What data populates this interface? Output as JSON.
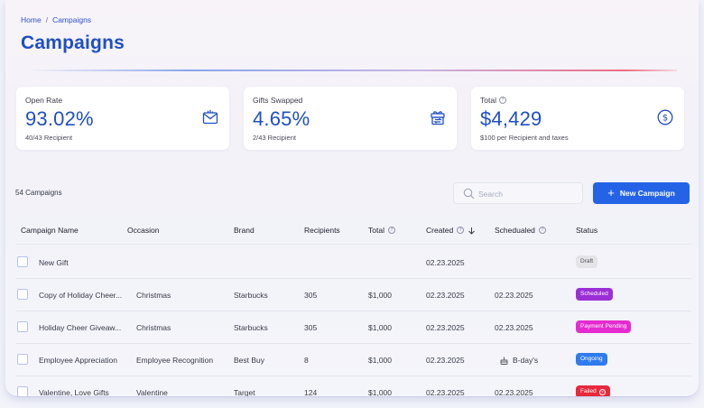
{
  "breadcrumb": {
    "home": "Home",
    "separator": "/",
    "current": "Campaigns"
  },
  "page_title": "Campaigns",
  "stats": [
    {
      "label": "Open Rate",
      "value": "93.02%",
      "sub": "40/43 Recipient",
      "icon": "envelope-chart-icon",
      "has_info": false
    },
    {
      "label": "Gifts Swapped",
      "value": "4.65%",
      "sub": "2/43 Recipient",
      "icon": "gift-swap-icon",
      "has_info": false
    },
    {
      "label": "Total",
      "value": "$4,429",
      "sub": "$100 per Recipient and taxes",
      "icon": "dollar-circle-icon",
      "has_info": true
    }
  ],
  "toolbar": {
    "count_label": "54 Campaigns",
    "search_placeholder": "Search",
    "new_campaign_label": "New Campaign"
  },
  "table": {
    "headers": {
      "name": "Campaign Name",
      "occasion": "Occasion",
      "brand": "Brand",
      "recipients": "Recipients",
      "total": "Total",
      "created": "Created",
      "scheduled": "Schedualed",
      "status": "Status"
    },
    "rows": [
      {
        "name": "New Gift",
        "occasion": "",
        "brand": "",
        "recipients": "",
        "total": "",
        "created": "02.23.2025",
        "scheduled": "",
        "status": "Draft",
        "status_color": "#e4e4e8",
        "status_text_color": "#555555",
        "status_info": false,
        "scheduled_icon": false
      },
      {
        "name": "Copy of Holiday Cheer...",
        "occasion": "Christmas",
        "brand": "Starbucks",
        "recipients": "305",
        "total": "$1,000",
        "created": "02.23.2025",
        "scheduled": "02.23.2025",
        "status": "Scheduled",
        "status_color": "#9b2fd6",
        "status_text_color": "#ffffff",
        "status_info": false,
        "scheduled_icon": false
      },
      {
        "name": "Holiday Cheer Giveaw...",
        "occasion": "Christmas",
        "brand": "Starbucks",
        "recipients": "305",
        "total": "$1,000",
        "created": "02.23.2025",
        "scheduled": "02.23.2025",
        "status": "Payment Pending",
        "status_color": "#e52bd0",
        "status_text_color": "#ffffff",
        "status_info": false,
        "scheduled_icon": false
      },
      {
        "name": "Employee Appreciation",
        "occasion": "Employee Recognition",
        "brand": "Best Buy",
        "recipients": "8",
        "total": "$1,000",
        "created": "02.23.2025",
        "scheduled": "B-day's",
        "status": "Ongoing",
        "status_color": "#2e7bee",
        "status_text_color": "#ffffff",
        "status_info": false,
        "scheduled_icon": true
      },
      {
        "name": "Valentine, Love Gifts",
        "occasion": "Valentine",
        "brand": "Target",
        "recipients": "124",
        "total": "$1,000",
        "created": "02.23.2025",
        "scheduled": "02.23.2025",
        "status": "Failed",
        "status_color": "#e8283b",
        "status_text_color": "#ffffff",
        "status_info": true,
        "scheduled_icon": false
      }
    ]
  },
  "colors": {
    "accent": "#2563e6",
    "title": "#1f4fc4"
  }
}
